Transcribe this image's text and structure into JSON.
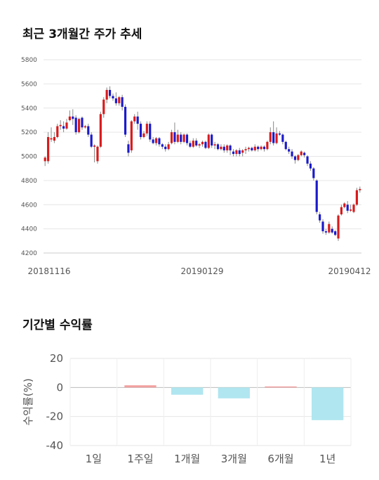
{
  "sections": {
    "price_title": "최근 3개월간 주가 추세",
    "return_title": "기간별 수익률"
  },
  "chart_data": [
    {
      "type": "candlestick",
      "title": "최근 3개월간 주가 추세",
      "ylim": [
        4200,
        5800
      ],
      "yticks": [
        4200,
        4400,
        4600,
        4800,
        5000,
        5200,
        5400,
        5600,
        5800
      ],
      "xtick_labels": [
        "20181116",
        "20190129",
        "20190412"
      ],
      "grid": true,
      "colors": {
        "up": "#d91a1a",
        "down": "#1a1acc",
        "wick": "#888888"
      },
      "candles": [
        [
          4960,
          4990,
          4920,
          5000
        ],
        [
          4960,
          5160,
          4940,
          5200
        ],
        [
          5140,
          5150,
          5120,
          5240
        ],
        [
          5130,
          5160,
          5110,
          5200
        ],
        [
          5160,
          5250,
          5150,
          5270
        ],
        [
          5250,
          5260,
          5220,
          5300
        ],
        [
          5250,
          5230,
          5200,
          5290
        ],
        [
          5230,
          5280,
          5220,
          5310
        ],
        [
          5300,
          5330,
          5290,
          5380
        ],
        [
          5330,
          5310,
          5260,
          5390
        ],
        [
          5320,
          5200,
          5180,
          5340
        ],
        [
          5200,
          5310,
          5190,
          5320
        ],
        [
          5320,
          5240,
          5220,
          5330
        ],
        [
          5240,
          5250,
          5230,
          5260
        ],
        [
          5250,
          5180,
          5160,
          5270
        ],
        [
          5180,
          5080,
          5070,
          5200
        ],
        [
          5080,
          5090,
          4950,
          5100
        ],
        [
          4960,
          5080,
          4940,
          5090
        ],
        [
          5080,
          5350,
          5070,
          5370
        ],
        [
          5350,
          5470,
          5320,
          5490
        ],
        [
          5470,
          5550,
          5440,
          5570
        ],
        [
          5550,
          5500,
          5480,
          5580
        ],
        [
          5500,
          5480,
          5460,
          5520
        ],
        [
          5480,
          5440,
          5420,
          5530
        ],
        [
          5440,
          5490,
          5420,
          5500
        ],
        [
          5490,
          5410,
          5380,
          5510
        ],
        [
          5410,
          5180,
          5160,
          5430
        ],
        [
          5100,
          5030,
          5000,
          5130
        ],
        [
          5050,
          5290,
          5030,
          5300
        ],
        [
          5290,
          5330,
          5270,
          5350
        ],
        [
          5330,
          5270,
          5220,
          5370
        ],
        [
          5270,
          5160,
          5140,
          5290
        ],
        [
          5160,
          5190,
          5150,
          5210
        ],
        [
          5190,
          5270,
          5170,
          5290
        ],
        [
          5270,
          5140,
          5120,
          5290
        ],
        [
          5140,
          5110,
          5100,
          5160
        ],
        [
          5110,
          5150,
          5090,
          5160
        ],
        [
          5150,
          5100,
          5080,
          5160
        ],
        [
          5100,
          5080,
          5060,
          5110
        ],
        [
          5080,
          5060,
          5040,
          5100
        ],
        [
          5060,
          5100,
          5050,
          5120
        ],
        [
          5110,
          5200,
          5100,
          5220
        ],
        [
          5200,
          5120,
          5100,
          5280
        ],
        [
          5120,
          5180,
          5110,
          5220
        ],
        [
          5180,
          5120,
          5100,
          5200
        ],
        [
          5120,
          5180,
          5110,
          5190
        ],
        [
          5180,
          5110,
          5090,
          5190
        ],
        [
          5110,
          5080,
          5070,
          5130
        ],
        [
          5080,
          5130,
          5070,
          5150
        ],
        [
          5130,
          5090,
          5080,
          5150
        ],
        [
          5090,
          5100,
          5070,
          5110
        ],
        [
          5100,
          5120,
          5080,
          5130
        ],
        [
          5120,
          5070,
          5060,
          5130
        ],
        [
          5070,
          5180,
          5060,
          5190
        ],
        [
          5180,
          5090,
          5070,
          5190
        ],
        [
          5090,
          5100,
          5060,
          5120
        ],
        [
          5100,
          5060,
          5050,
          5110
        ],
        [
          5060,
          5080,
          5050,
          5100
        ],
        [
          5080,
          5050,
          5030,
          5100
        ],
        [
          5050,
          5090,
          5030,
          5100
        ],
        [
          5090,
          5050,
          5010,
          5100
        ],
        [
          5040,
          5020,
          5000,
          5060
        ],
        [
          5020,
          5050,
          5000,
          5060
        ],
        [
          5050,
          5020,
          5000,
          5070
        ],
        [
          5030,
          5050,
          5000,
          5060
        ],
        [
          5050,
          5060,
          5020,
          5080
        ],
        [
          5060,
          5070,
          5040,
          5080
        ],
        [
          5070,
          5050,
          5040,
          5080
        ],
        [
          5050,
          5080,
          5040,
          5100
        ],
        [
          5080,
          5060,
          5040,
          5090
        ],
        [
          5060,
          5080,
          5050,
          5090
        ],
        [
          5080,
          5060,
          5040,
          5090
        ],
        [
          5060,
          5120,
          5050,
          5130
        ],
        [
          5120,
          5200,
          5100,
          5240
        ],
        [
          5200,
          5110,
          5090,
          5290
        ],
        [
          5110,
          5190,
          5100,
          5240
        ],
        [
          5190,
          5180,
          5170,
          5210
        ],
        [
          5180,
          5120,
          5100,
          5190
        ],
        [
          5120,
          5060,
          5050,
          5130
        ],
        [
          5060,
          5040,
          5020,
          5080
        ],
        [
          5040,
          5000,
          4980,
          5060
        ],
        [
          5000,
          4970,
          4940,
          5010
        ],
        [
          4970,
          5010,
          4960,
          5020
        ],
        [
          5010,
          5040,
          5000,
          5050
        ],
        [
          5030,
          5010,
          4990,
          5040
        ],
        [
          5000,
          4940,
          4920,
          5010
        ],
        [
          4940,
          4900,
          4880,
          4960
        ],
        [
          4900,
          4820,
          4800,
          4910
        ],
        [
          4800,
          4540,
          4520,
          4810
        ],
        [
          4520,
          4470,
          4450,
          4540
        ],
        [
          4460,
          4380,
          4360,
          4480
        ],
        [
          4380,
          4370,
          4350,
          4400
        ],
        [
          4370,
          4440,
          4360,
          4460
        ],
        [
          4400,
          4370,
          4360,
          4420
        ],
        [
          4380,
          4350,
          4340,
          4390
        ],
        [
          4320,
          4510,
          4300,
          4520
        ],
        [
          4520,
          4580,
          4510,
          4600
        ],
        [
          4580,
          4610,
          4570,
          4620
        ],
        [
          4600,
          4550,
          4530,
          4630
        ],
        [
          4550,
          4560,
          4540,
          4600
        ],
        [
          4540,
          4600,
          4530,
          4610
        ],
        [
          4600,
          4720,
          4590,
          4740
        ],
        [
          4720,
          4730,
          4700,
          4750
        ]
      ]
    },
    {
      "type": "bar",
      "title": "기간별 수익률",
      "categories": [
        "1일",
        "1주일",
        "1개월",
        "3개월",
        "6개월",
        "1년"
      ],
      "values": [
        0,
        1.5,
        -5.0,
        -7.5,
        0.7,
        -22.5
      ],
      "ylabel": "수익률(%)",
      "ylim": [
        -40,
        20
      ],
      "yticks": [
        20,
        0,
        -20,
        -40
      ],
      "grid": true,
      "colors": {
        "positive": "#f2a0a0",
        "negative": "#b0e6f0"
      }
    }
  ]
}
